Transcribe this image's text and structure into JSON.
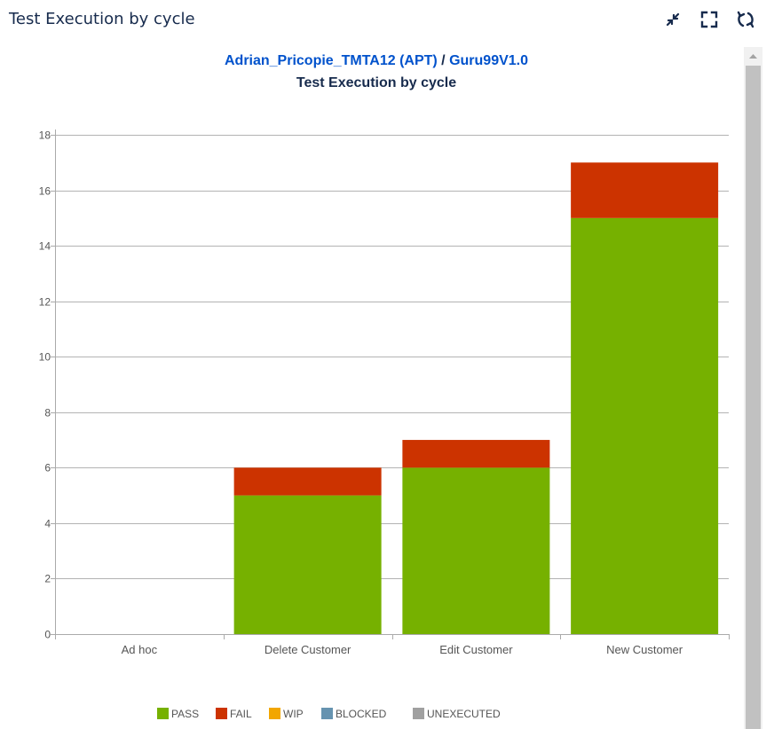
{
  "gadget": {
    "title": "Test Execution by cycle"
  },
  "header_icons": [
    "minimize-icon",
    "fullscreen-icon",
    "refresh-icon"
  ],
  "chart_data": {
    "type": "bar",
    "stacked": true,
    "project_link": "Adrian_Pricopie_TMTA12 (APT)",
    "separator": " / ",
    "version_link": "Guru99V1.0",
    "title": "Test Execution by cycle",
    "categories": [
      "Ad hoc",
      "Delete Customer",
      "Edit Customer",
      "New Customer"
    ],
    "series": [
      {
        "name": "PASS",
        "color": "#76b100",
        "values": [
          0,
          5,
          6,
          15
        ]
      },
      {
        "name": "FAIL",
        "color": "#cc3300",
        "values": [
          0,
          1,
          1,
          2
        ]
      },
      {
        "name": "WIP",
        "color": "#f2a600",
        "values": [
          0,
          0,
          0,
          0
        ]
      },
      {
        "name": "BLOCKED",
        "color": "#6693b0",
        "values": [
          0,
          0,
          0,
          0
        ]
      },
      {
        "name": "UNEXECUTED",
        "color": "#a0a0a0",
        "values": [
          0,
          0,
          0,
          0
        ]
      }
    ],
    "ylim": [
      0,
      18
    ],
    "yticks": [
      0,
      2,
      4,
      6,
      8,
      10,
      12,
      14,
      16,
      18
    ],
    "grid": true,
    "legend_position": "bottom",
    "xlabel": "",
    "ylabel": ""
  },
  "colors": {
    "link": "#0052cc",
    "axis": "#aaaaaa",
    "grid": "#b3b3b3",
    "tick_text": "#555555"
  }
}
